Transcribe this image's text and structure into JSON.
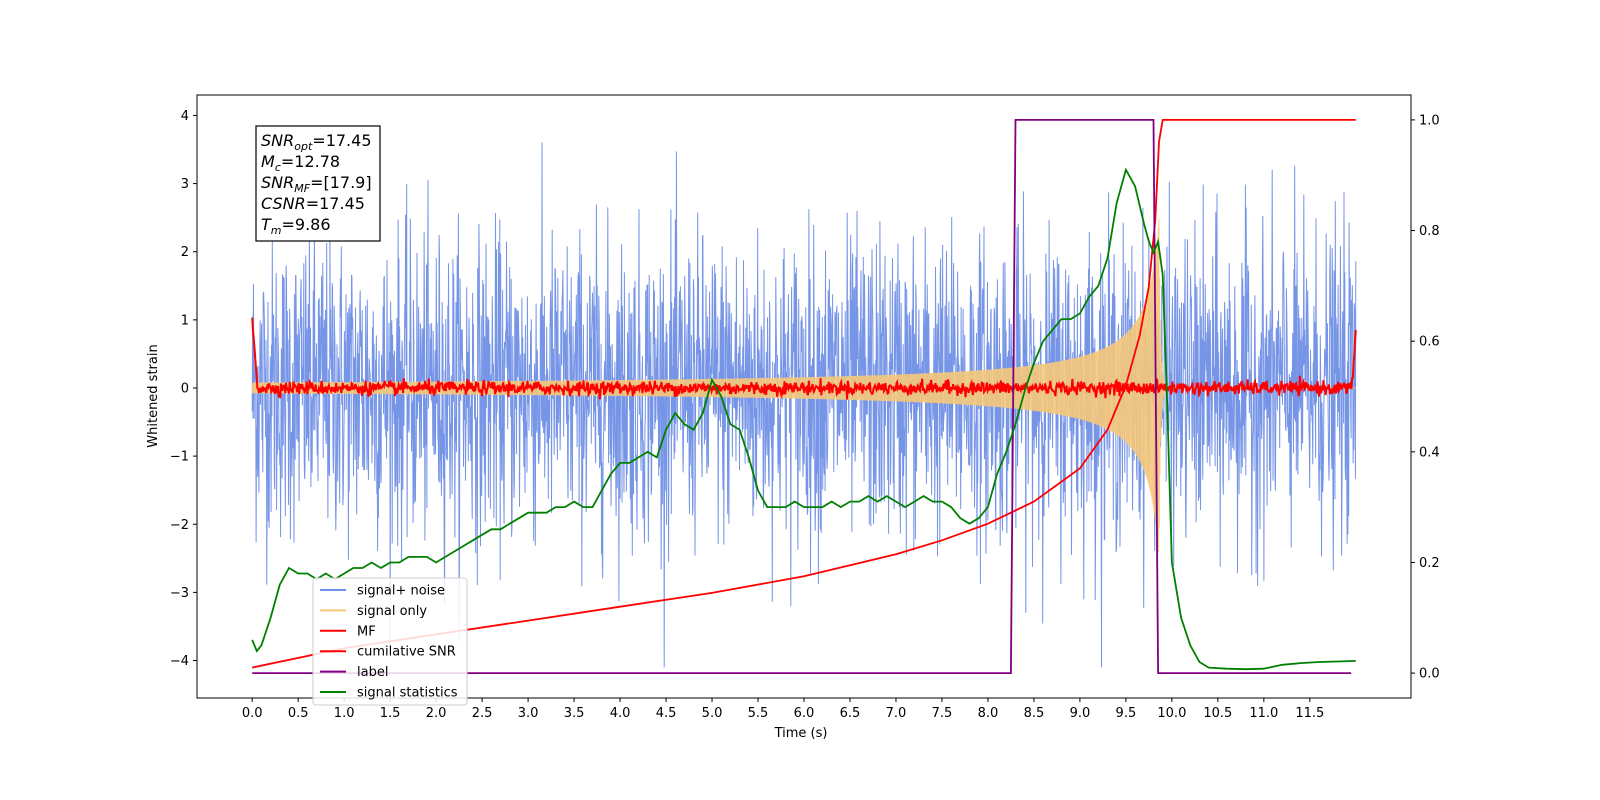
{
  "chart_data": {
    "type": "line",
    "xlabel": "Time (s)",
    "ylabel": "Whitened strain",
    "xlim": [
      -0.6,
      12.6
    ],
    "ylim_left": [
      -4.55,
      4.3
    ],
    "ylim_right": [
      -0.045,
      1.045
    ],
    "xticks": [
      "0.0",
      "0.5",
      "1.0",
      "1.5",
      "2.0",
      "2.5",
      "3.0",
      "3.5",
      "4.0",
      "4.5",
      "5.0",
      "5.5",
      "6.0",
      "6.5",
      "7.0",
      "7.5",
      "8.0",
      "8.5",
      "9.0",
      "9.5",
      "10.0",
      "10.5",
      "11.0",
      "11.5"
    ],
    "yticks_left": [
      "4",
      "3",
      "2",
      "1",
      "0",
      "−1",
      "−2",
      "−3",
      "−4"
    ],
    "yticks_right": [
      "1.0",
      "0.8",
      "0.6",
      "0.4",
      "0.2",
      "0.0"
    ],
    "annotation": {
      "lines": [
        {
          "base": "SNR",
          "sub": "opt",
          "value": "=17.45"
        },
        {
          "base": "M",
          "sub": "c",
          "value": "=12.78"
        },
        {
          "base": "SNR",
          "sub": "MF",
          "value": "=[17.9]"
        },
        {
          "base": "CSNR",
          "sub": "",
          "value": "=17.45"
        },
        {
          "base": "T",
          "sub": "m",
          "value": "=9.86"
        }
      ]
    },
    "legend": {
      "position": "lower-left",
      "items": [
        {
          "label": "signal+ noise",
          "color": "#6f8fe6"
        },
        {
          "label": "signal only",
          "color": "#f5c87a"
        },
        {
          "label": "MF",
          "color": "#ff0000"
        },
        {
          "label": "cumilative SNR",
          "color": "#ff0000"
        },
        {
          "label": "label",
          "color": "#800080"
        },
        {
          "label": "signal statistics",
          "color": "#008000"
        }
      ]
    },
    "series": [
      {
        "name": "signal+ noise",
        "axis": "left",
        "kind": "gaussian-noise",
        "t_start": 0.0,
        "t_end": 12.0,
        "mean": 0.0,
        "std": 1.1
      },
      {
        "name": "signal only",
        "axis": "left",
        "kind": "chirp",
        "t_start": 0.0,
        "t_end": 12.0,
        "merger_time": 9.86,
        "peak_amplitude": 2.5
      },
      {
        "name": "MF",
        "axis": "left",
        "kind": "matched-filter",
        "t_start": 0.0,
        "t_end": 12.0,
        "start_value": 1.0,
        "end_value": 0.9,
        "noise_std": 0.05
      },
      {
        "name": "cumilative SNR",
        "axis": "right",
        "x": [
          0.0,
          1.0,
          2.0,
          3.0,
          4.0,
          5.0,
          6.0,
          7.0,
          7.5,
          8.0,
          8.5,
          9.0,
          9.3,
          9.5,
          9.65,
          9.75,
          9.82,
          9.86,
          9.9,
          12.0
        ],
        "y": [
          0.01,
          0.045,
          0.07,
          0.095,
          0.12,
          0.145,
          0.175,
          0.215,
          0.24,
          0.27,
          0.31,
          0.37,
          0.44,
          0.52,
          0.61,
          0.7,
          0.82,
          0.96,
          1.0,
          1.0
        ]
      },
      {
        "name": "label",
        "axis": "right",
        "x": [
          0.0,
          8.25,
          8.3,
          9.8,
          9.85,
          11.95
        ],
        "y": [
          0.0,
          0.0,
          1.0,
          1.0,
          0.0,
          0.0
        ]
      },
      {
        "name": "signal statistics",
        "axis": "right",
        "x": [
          0.0,
          0.05,
          0.1,
          0.2,
          0.3,
          0.4,
          0.5,
          0.6,
          0.7,
          0.8,
          0.9,
          1.0,
          1.1,
          1.2,
          1.3,
          1.4,
          1.5,
          1.6,
          1.7,
          1.8,
          1.9,
          2.0,
          2.1,
          2.2,
          2.3,
          2.4,
          2.5,
          2.6,
          2.7,
          2.8,
          2.9,
          3.0,
          3.1,
          3.2,
          3.3,
          3.4,
          3.5,
          3.6,
          3.7,
          3.8,
          3.9,
          4.0,
          4.1,
          4.2,
          4.3,
          4.4,
          4.5,
          4.6,
          4.7,
          4.8,
          4.9,
          5.0,
          5.1,
          5.2,
          5.3,
          5.4,
          5.5,
          5.6,
          5.7,
          5.8,
          5.9,
          6.0,
          6.1,
          6.2,
          6.3,
          6.4,
          6.5,
          6.6,
          6.7,
          6.8,
          6.9,
          7.0,
          7.1,
          7.2,
          7.3,
          7.4,
          7.5,
          7.6,
          7.7,
          7.8,
          7.9,
          8.0,
          8.1,
          8.2,
          8.3,
          8.4,
          8.5,
          8.6,
          8.7,
          8.8,
          8.9,
          9.0,
          9.1,
          9.2,
          9.3,
          9.4,
          9.5,
          9.6,
          9.7,
          9.75,
          9.8,
          9.85,
          9.9,
          9.95,
          10.0,
          10.1,
          10.2,
          10.3,
          10.4,
          10.6,
          10.8,
          11.0,
          11.2,
          11.4,
          11.6,
          11.8,
          12.0
        ],
        "y": [
          0.06,
          0.04,
          0.05,
          0.1,
          0.16,
          0.19,
          0.18,
          0.18,
          0.17,
          0.18,
          0.17,
          0.18,
          0.19,
          0.19,
          0.2,
          0.19,
          0.2,
          0.2,
          0.21,
          0.21,
          0.21,
          0.2,
          0.21,
          0.22,
          0.23,
          0.24,
          0.25,
          0.26,
          0.26,
          0.27,
          0.28,
          0.29,
          0.29,
          0.29,
          0.3,
          0.3,
          0.31,
          0.3,
          0.3,
          0.33,
          0.36,
          0.38,
          0.38,
          0.39,
          0.4,
          0.39,
          0.44,
          0.47,
          0.45,
          0.44,
          0.47,
          0.53,
          0.5,
          0.45,
          0.44,
          0.39,
          0.33,
          0.3,
          0.3,
          0.3,
          0.31,
          0.3,
          0.3,
          0.3,
          0.31,
          0.3,
          0.31,
          0.31,
          0.32,
          0.31,
          0.32,
          0.31,
          0.3,
          0.31,
          0.32,
          0.31,
          0.31,
          0.3,
          0.28,
          0.27,
          0.28,
          0.3,
          0.36,
          0.4,
          0.45,
          0.51,
          0.56,
          0.6,
          0.62,
          0.64,
          0.64,
          0.65,
          0.68,
          0.7,
          0.75,
          0.85,
          0.91,
          0.88,
          0.81,
          0.78,
          0.76,
          0.78,
          0.72,
          0.48,
          0.2,
          0.1,
          0.05,
          0.02,
          0.01,
          0.008,
          0.007,
          0.008,
          0.015,
          0.018,
          0.02,
          0.021,
          0.022
        ]
      }
    ]
  }
}
